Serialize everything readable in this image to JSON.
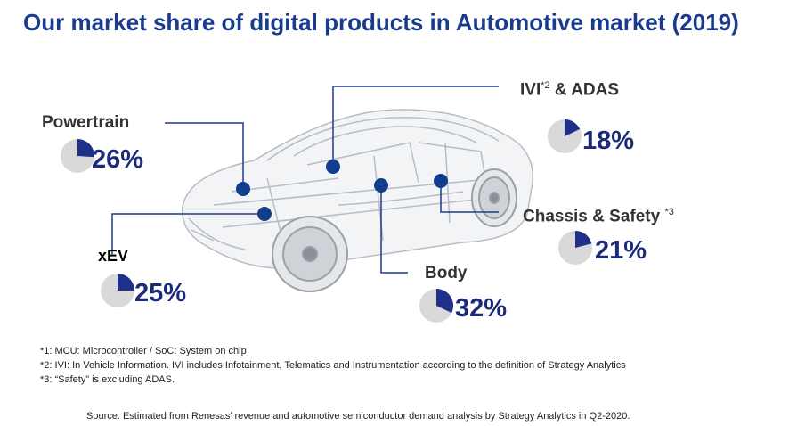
{
  "title": "Our market share of digital products in Automotive market (2019)",
  "accent_color": "#1a3a8c",
  "pie_fill_color": "#1f2f8a",
  "pie_bg_color": "#d9d9d9",
  "segments": [
    {
      "id": "powertrain",
      "label": "Powertrain",
      "sup": "",
      "share": 0.26,
      "pct_text": "26%"
    },
    {
      "id": "xev",
      "label": "xEV",
      "sup": "",
      "share": 0.25,
      "pct_text": "25%"
    },
    {
      "id": "ivi",
      "label": "IVI",
      "sup": "*2",
      "label_suffix": " & ADAS",
      "share": 0.18,
      "pct_text": "18%"
    },
    {
      "id": "chassis",
      "label": "Chassis & Safety ",
      "sup": "*3",
      "share": 0.21,
      "pct_text": "21%"
    },
    {
      "id": "body",
      "label": "Body",
      "sup": "",
      "share": 0.32,
      "pct_text": "32%"
    }
  ],
  "footnotes": [
    "*1: MCU: Microcontroller / SoC: System on chip",
    "*2: IVI: In Vehicle Information. IVI includes Infotainment, Telematics and Instrumentation according to the definition of Strategy Analytics",
    "*3: “Safety” is excluding ADAS."
  ],
  "source": "Source: Estimated from Renesas’ revenue and automotive semiconductor demand analysis by Strategy Analytics in Q2-2020."
}
